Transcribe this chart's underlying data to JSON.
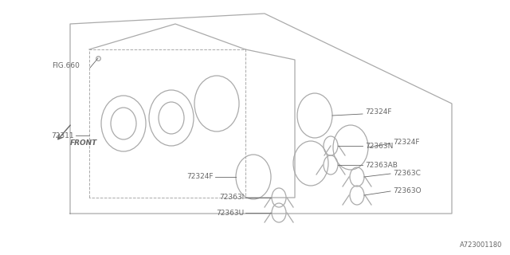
{
  "bg_color": "#ffffff",
  "line_color": "#aaaaaa",
  "text_color": "#666666",
  "part_number": "A723001180",
  "labels": {
    "fig660": "FIG.660",
    "front": "FRONT",
    "p72311": "72311",
    "p72324F_top": "72324F",
    "p72324F_mid": "72324F",
    "p72324F_bot": "72324F",
    "p72363N": "72363N",
    "p72363AB": "72363AB",
    "p72363C": "72363C",
    "p72363O": "72363O",
    "p72363I": "72363I",
    "p72363U": "72363U"
  },
  "font_size": 6.5,
  "lw_main": 0.9,
  "lw_dash": 0.7,
  "lw_leader": 0.6
}
